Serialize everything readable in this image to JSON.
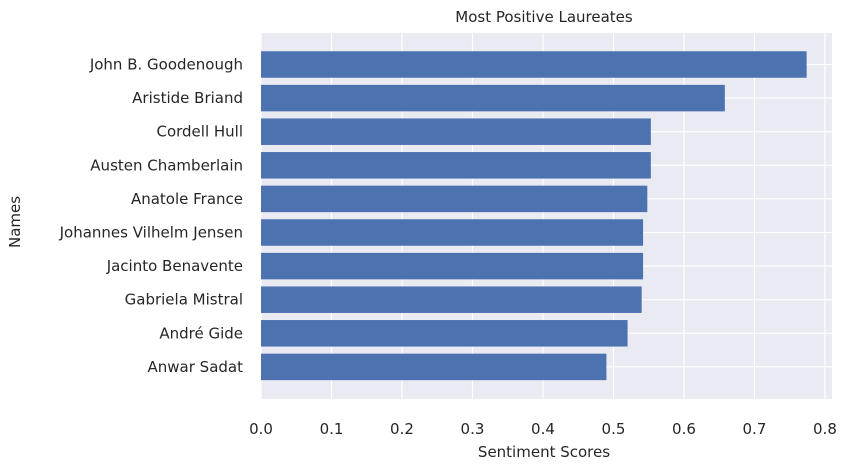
{
  "chart_data": {
    "type": "bar",
    "orientation": "horizontal",
    "title": "Most Positive Laureates",
    "xlabel": "Sentiment Scores",
    "ylabel": "Names",
    "xlim": [
      0,
      0.81
    ],
    "xticks": [
      0.0,
      0.1,
      0.2,
      0.3,
      0.4,
      0.5,
      0.6,
      0.7,
      0.8
    ],
    "xtick_labels": [
      "0.0",
      "0.1",
      "0.2",
      "0.3",
      "0.4",
      "0.5",
      "0.6",
      "0.7",
      "0.8"
    ],
    "grid": true,
    "categories": [
      "John B. Goodenough",
      "Aristide Briand",
      "Cordell Hull",
      "Austen Chamberlain",
      "Anatole France",
      "Johannes Vilhelm Jensen",
      "Jacinto Benavente",
      "Gabriela Mistral",
      "André Gide",
      "Anwar Sadat"
    ],
    "values": [
      0.774,
      0.658,
      0.553,
      0.553,
      0.548,
      0.542,
      0.542,
      0.54,
      0.52,
      0.49
    ],
    "colors": {
      "bar": "#4c72b0",
      "plot_background": "#eaeaf2",
      "grid": "#ffffff",
      "text": "#262626"
    }
  }
}
